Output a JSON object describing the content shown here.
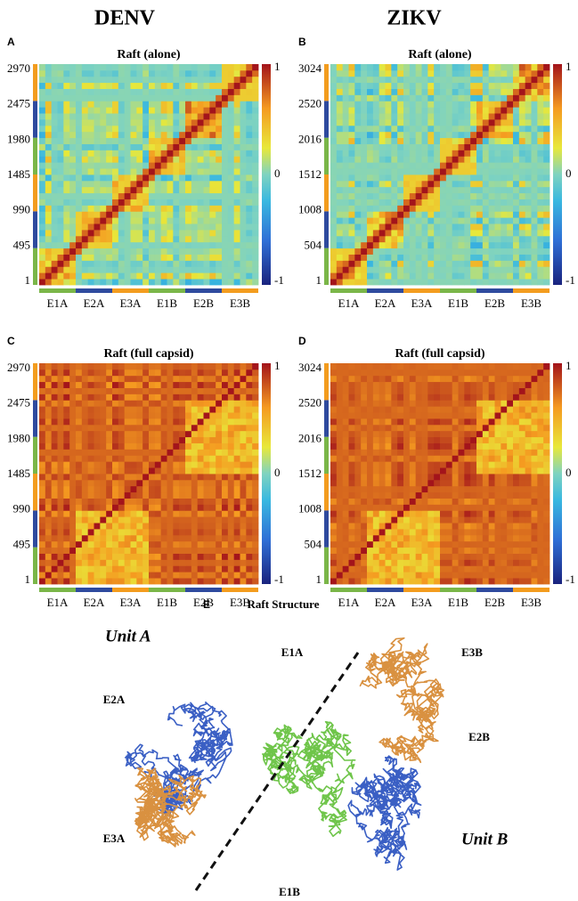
{
  "columns": [
    "DENV",
    "ZIKV"
  ],
  "panels": [
    {
      "label": "A",
      "title": "Raft (alone)",
      "yticks": [
        1,
        495,
        990,
        1485,
        1980,
        2475,
        2970
      ],
      "xlabels": [
        "E1A",
        "E2A",
        "E3A",
        "E1B",
        "E2B",
        "E3B"
      ],
      "colorbar": [
        1,
        0,
        -1
      ]
    },
    {
      "label": "B",
      "title": "Raft (alone)",
      "yticks": [
        1,
        504,
        1008,
        1512,
        2016,
        2520,
        3024
      ],
      "xlabels": [
        "E1A",
        "E2A",
        "E3A",
        "E1B",
        "E2B",
        "E3B"
      ],
      "colorbar": [
        1,
        0,
        -1
      ]
    },
    {
      "label": "C",
      "title": "Raft (full capsid)",
      "yticks": [
        1,
        495,
        990,
        1485,
        1980,
        2475,
        2970
      ],
      "xlabels": [
        "E1A",
        "E2A",
        "E3A",
        "E1B",
        "E2B",
        "E3B"
      ],
      "colorbar": [
        1,
        0,
        -1
      ]
    },
    {
      "label": "D",
      "title": "Raft (full capsid)",
      "yticks": [
        1,
        504,
        1008,
        1512,
        2016,
        2520,
        3024
      ],
      "xlabels": [
        "E1A",
        "E2A",
        "E3A",
        "E1B",
        "E2B",
        "E3B"
      ],
      "colorbar": [
        1,
        0,
        -1
      ]
    }
  ],
  "structure": {
    "label": "E",
    "title": "Raft Structure",
    "unit_a": "Unit A",
    "unit_b": "Unit B",
    "chains": [
      "E1A",
      "E3B",
      "E2A",
      "E2B",
      "E3A",
      "E1B"
    ]
  }
}
